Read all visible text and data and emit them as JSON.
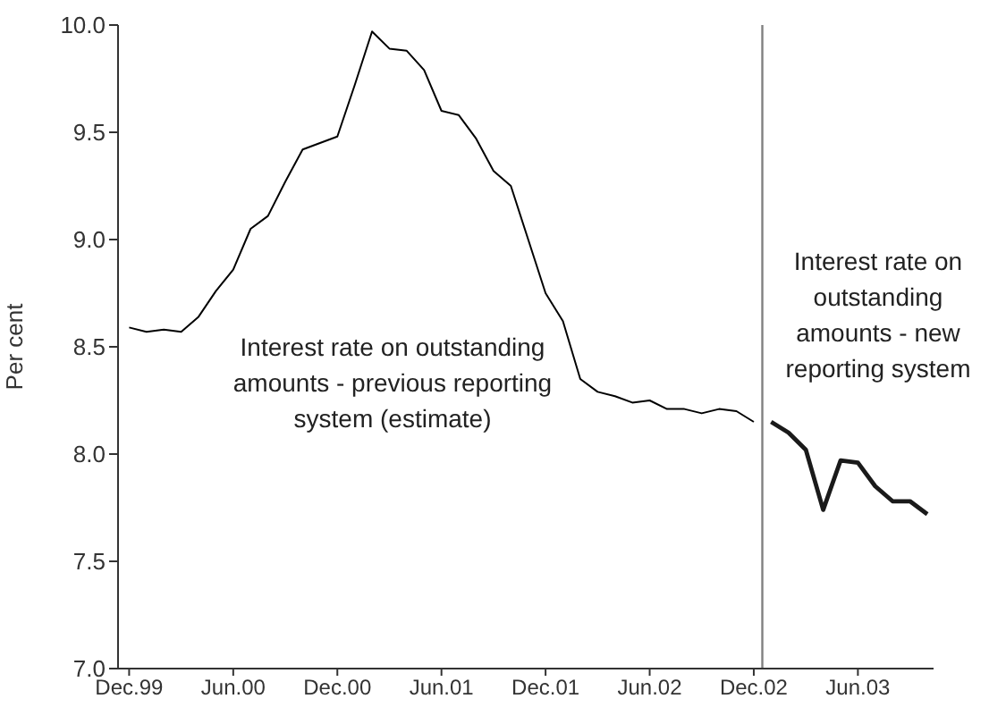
{
  "chart_data": {
    "type": "line",
    "ylabel": "Per cent",
    "series": [
      {
        "color": "#000000",
        "x": [
          "1999-12",
          "2000-01",
          "2000-02",
          "2000-03",
          "2000-04",
          "2000-05",
          "2000-06",
          "2000-07",
          "2000-08",
          "2000-09",
          "2000-10",
          "2000-11",
          "2000-12",
          "2001-01",
          "2001-02",
          "2001-03",
          "2001-04",
          "2001-05",
          "2001-06",
          "2001-07",
          "2001-08",
          "2001-09",
          "2001-10",
          "2001-11",
          "2001-12",
          "2002-01",
          "2002-02",
          "2002-03",
          "2002-04",
          "2002-05",
          "2002-06",
          "2002-07",
          "2002-08",
          "2002-09",
          "2002-10",
          "2002-11",
          "2002-12"
        ],
        "values": [
          8.59,
          8.57,
          8.58,
          8.57,
          8.64,
          8.76,
          8.86,
          9.05,
          9.11,
          9.27,
          9.42,
          9.45,
          9.48,
          9.72,
          9.97,
          9.89,
          9.88,
          9.79,
          9.6,
          9.58,
          9.47,
          9.32,
          9.25,
          9.0,
          8.75,
          8.62,
          8.35,
          8.29,
          8.27,
          8.24,
          8.25,
          8.21,
          8.21,
          8.19,
          8.21,
          8.2,
          8.15
        ]
      },
      {
        "color": "#1a1a1a",
        "x": [
          "2003-01",
          "2003-02",
          "2003-03",
          "2003-04",
          "2003-05",
          "2003-06",
          "2003-07",
          "2003-08",
          "2003-09",
          "2003-10"
        ],
        "values": [
          8.15,
          8.1,
          8.02,
          7.74,
          7.97,
          7.96,
          7.85,
          7.78,
          7.78,
          7.72
        ]
      }
    ],
    "xlim": [
      "1999-11-12",
      "2003-10-12"
    ],
    "xticks": [
      {
        "value": "1999-12",
        "label": "Dec.99"
      },
      {
        "value": "2000-06",
        "label": "Jun.00"
      },
      {
        "value": "2000-12",
        "label": "Dec.00"
      },
      {
        "value": "2001-06",
        "label": "Jun.01"
      },
      {
        "value": "2001-12",
        "label": "Dec.01"
      },
      {
        "value": "2002-06",
        "label": "Jun.02"
      },
      {
        "value": "2002-12",
        "label": "Dec.02"
      },
      {
        "value": "2003-06",
        "label": "Jun.03"
      }
    ],
    "ylim": [
      7.0,
      10.0
    ],
    "yticks": [
      {
        "value": 7.0,
        "label": "7.0"
      },
      {
        "value": 7.5,
        "label": "7.5"
      },
      {
        "value": 8.0,
        "label": "8.0"
      },
      {
        "value": 8.5,
        "label": "8.5"
      },
      {
        "value": 9.0,
        "label": "9.0"
      },
      {
        "value": 9.5,
        "label": "9.5"
      },
      {
        "value": 10.0,
        "label": "10.0"
      }
    ],
    "ref_lines": [
      {
        "axis": "x",
        "value": "2002-12-16",
        "color": "#808080"
      }
    ],
    "annotations": [
      "Interest rate on outstanding amounts - previous reporting system (estimate)",
      "Interest rate on outstanding amounts - new reporting system"
    ],
    "grid": false,
    "marker": "none",
    "line_style": "solid"
  }
}
